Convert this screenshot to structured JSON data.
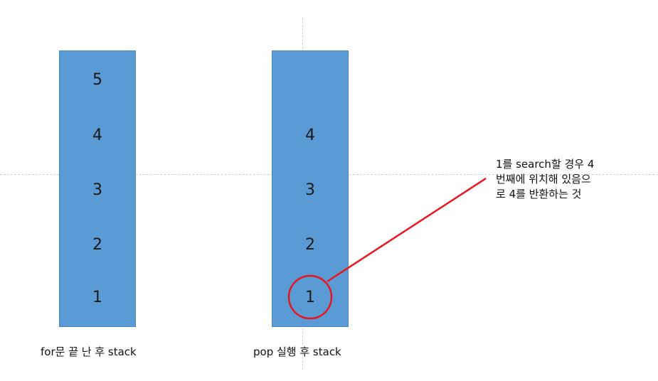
{
  "stacks": [
    {
      "caption": "for문 끝 난 후 stack",
      "items": [
        "5",
        "4",
        "3",
        "2",
        "1"
      ]
    },
    {
      "caption": "pop 실행 후 stack",
      "items": [
        "4",
        "3",
        "2",
        "1"
      ]
    }
  ],
  "annotation": {
    "lines": [
      "1를 search할 경우 4",
      "번째에 위치해 있음으",
      "로 4를 반환하는 것"
    ],
    "color": "#e8161e"
  },
  "colors": {
    "stack_fill": "#5b9bd5",
    "guide": "#cfcfcf"
  }
}
